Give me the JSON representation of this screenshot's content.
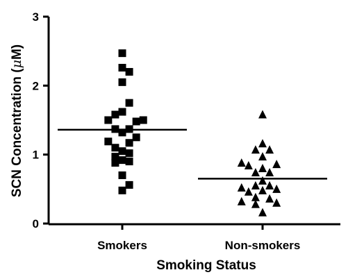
{
  "chart_data": {
    "type": "scatter",
    "subtype": "dot-plot",
    "title": "",
    "xlabel": "Smoking Status",
    "ylabel": "SCN Concentration (μM)",
    "ylabel_parts": {
      "prefix": "SCN Concentration (",
      "mu": "μ",
      "suffix": "M)"
    },
    "categories": [
      "Smokers",
      "Non-smokers"
    ],
    "ylim": [
      0,
      3
    ],
    "yticks": [
      "0",
      "1",
      "2",
      "3"
    ],
    "grid": false,
    "series": [
      {
        "category": "Smokers",
        "marker": "square",
        "mean": 1.36,
        "points": [
          {
            "offset": 0.0,
            "y": 2.47
          },
          {
            "offset": 0.0,
            "y": 2.26
          },
          {
            "offset": 0.56,
            "y": 2.2
          },
          {
            "offset": 0.0,
            "y": 2.05
          },
          {
            "offset": 0.56,
            "y": 1.75
          },
          {
            "offset": -0.56,
            "y": 1.58
          },
          {
            "offset": 0.0,
            "y": 1.62
          },
          {
            "offset": -1.12,
            "y": 1.5
          },
          {
            "offset": 1.12,
            "y": 1.48
          },
          {
            "offset": 1.68,
            "y": 1.5
          },
          {
            "offset": -0.56,
            "y": 1.37
          },
          {
            "offset": 0.56,
            "y": 1.37
          },
          {
            "offset": 0.0,
            "y": 1.32
          },
          {
            "offset": 1.12,
            "y": 1.25
          },
          {
            "offset": -1.12,
            "y": 1.19
          },
          {
            "offset": 0.56,
            "y": 1.17
          },
          {
            "offset": -0.56,
            "y": 1.1
          },
          {
            "offset": 0.0,
            "y": 1.05
          },
          {
            "offset": 0.56,
            "y": 1.02
          },
          {
            "offset": -0.56,
            "y": 0.97
          },
          {
            "offset": 0.0,
            "y": 0.92
          },
          {
            "offset": -0.56,
            "y": 0.88
          },
          {
            "offset": 0.56,
            "y": 0.9
          },
          {
            "offset": 0.0,
            "y": 0.7
          },
          {
            "offset": 0.56,
            "y": 0.56
          },
          {
            "offset": 0.0,
            "y": 0.48
          }
        ]
      },
      {
        "category": "Non-smokers",
        "marker": "triangle",
        "mean": 0.65,
        "points": [
          {
            "offset": 0.0,
            "y": 1.58
          },
          {
            "offset": 0.0,
            "y": 1.16
          },
          {
            "offset": -0.56,
            "y": 1.07
          },
          {
            "offset": 0.56,
            "y": 1.07
          },
          {
            "offset": 0.0,
            "y": 0.97
          },
          {
            "offset": -1.68,
            "y": 0.88
          },
          {
            "offset": -1.12,
            "y": 0.84
          },
          {
            "offset": 1.12,
            "y": 0.86
          },
          {
            "offset": 0.0,
            "y": 0.8
          },
          {
            "offset": -0.56,
            "y": 0.74
          },
          {
            "offset": 0.56,
            "y": 0.74
          },
          {
            "offset": 0.0,
            "y": 0.62
          },
          {
            "offset": -0.56,
            "y": 0.55
          },
          {
            "offset": 0.56,
            "y": 0.55
          },
          {
            "offset": -1.68,
            "y": 0.52
          },
          {
            "offset": 1.12,
            "y": 0.5
          },
          {
            "offset": -1.12,
            "y": 0.46
          },
          {
            "offset": 0.0,
            "y": 0.48
          },
          {
            "offset": -0.56,
            "y": 0.38
          },
          {
            "offset": 0.56,
            "y": 0.36
          },
          {
            "offset": -1.68,
            "y": 0.32
          },
          {
            "offset": -0.56,
            "y": 0.28
          },
          {
            "offset": 1.12,
            "y": 0.3
          },
          {
            "offset": 0.0,
            "y": 0.16
          }
        ]
      }
    ]
  }
}
